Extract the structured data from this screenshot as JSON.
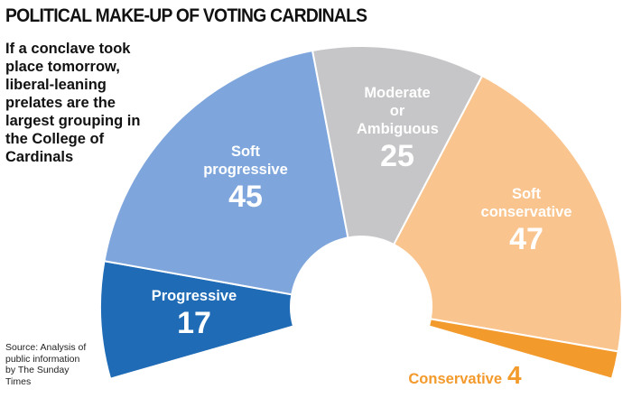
{
  "chart_data": {
    "type": "semidonut",
    "title": "POLITICAL MAKE-UP OF VOTING CARDINALS",
    "subtitle": "If a conclave took place tomorrow, liberal-leaning prelates are the largest grouping in the College of Cardinals",
    "source": "Source: Analysis of public information by The Sunday Times",
    "categories": [
      "Progressive",
      "Soft progressive",
      "Moderate or Ambiguous",
      "Soft conservative",
      "Conservative"
    ],
    "values": [
      17,
      45,
      25,
      47,
      4
    ],
    "colors": [
      "#1f6bb5",
      "#7fa6dc",
      "#c6c6c8",
      "#f9c48e",
      "#f39a2c"
    ]
  }
}
